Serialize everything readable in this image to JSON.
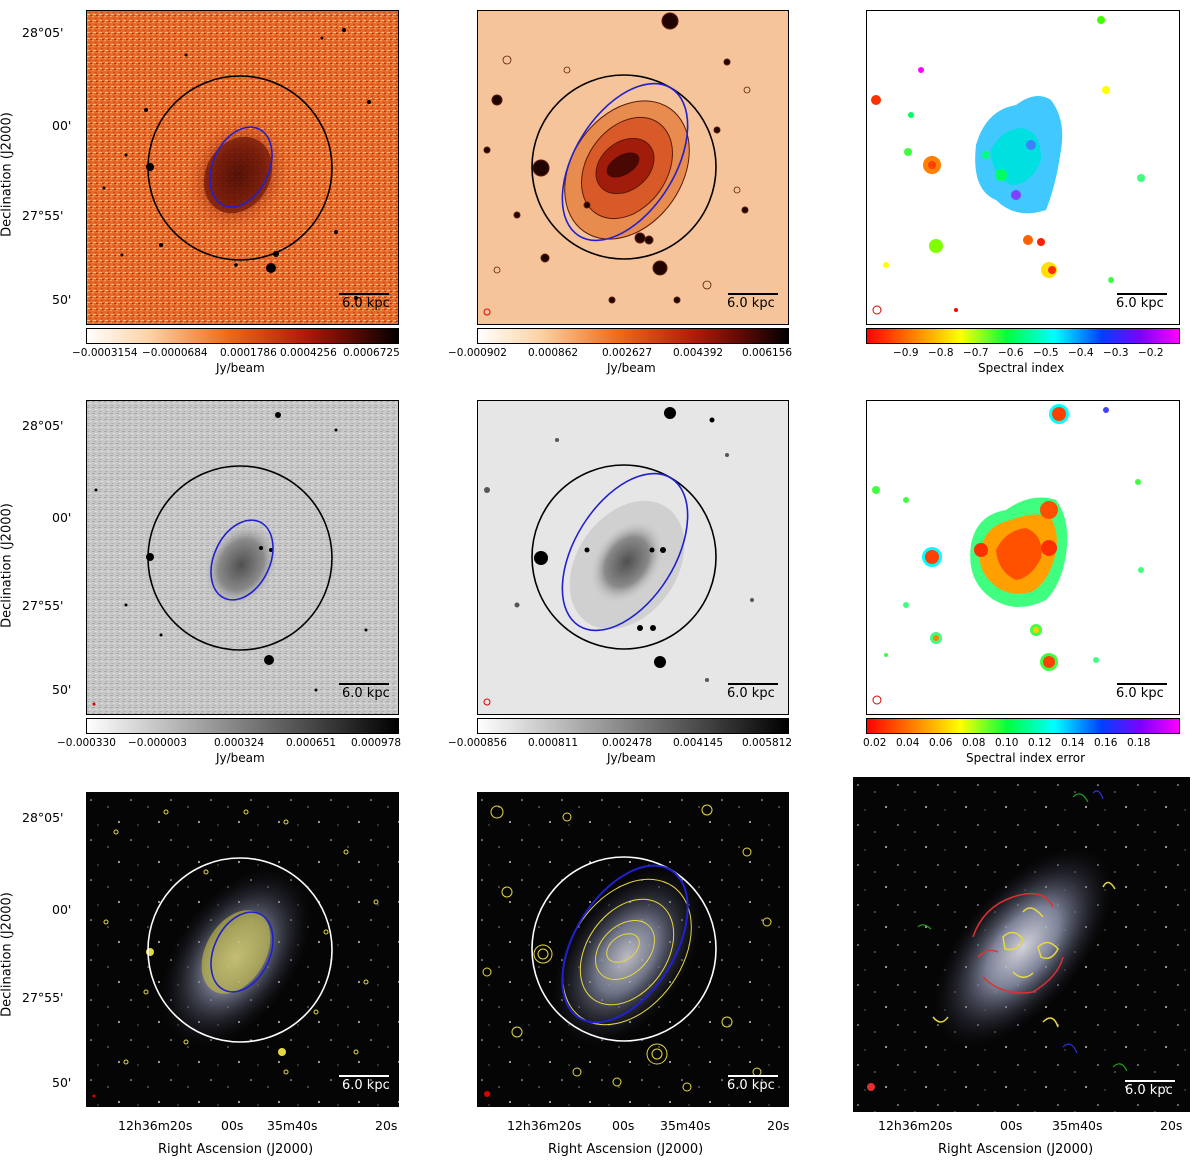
{
  "figure": {
    "y_axis_label": "Declination (J2000)",
    "x_axis_label": "Right Ascension (J2000)",
    "dec_ticks": [
      "28°05'",
      "00'",
      "27°55'",
      "50'"
    ],
    "ra_ticks": [
      "12h36m20s",
      "00s",
      "35m40s",
      "20s"
    ],
    "scale_bar": "6.0 kpc"
  },
  "panels": {
    "r1c1": {
      "colorbar": {
        "label": "Jy/beam",
        "ticks": [
          "−0.0003154",
          "−0.0000684",
          "0.0001786",
          "0.0004256",
          "0.0006725"
        ]
      }
    },
    "r1c2": {
      "colorbar": {
        "label": "Jy/beam",
        "ticks": [
          "−0.000902",
          "0.000862",
          "0.002627",
          "0.004392",
          "0.006156"
        ]
      }
    },
    "r1c3": {
      "colorbar": {
        "label": "Spectral index",
        "ticks": [
          "−0.9",
          "−0.8",
          "−0.7",
          "−0.6",
          "−0.5",
          "−0.4",
          "−0.3",
          "−0.2"
        ]
      }
    },
    "r2c1": {
      "colorbar": {
        "label": "Jy/beam",
        "ticks": [
          "−0.000330",
          "−0.000003",
          "0.000324",
          "0.000651",
          "0.000978"
        ]
      }
    },
    "r2c2": {
      "colorbar": {
        "label": "Jy/beam",
        "ticks": [
          "−0.000856",
          "0.000811",
          "0.002478",
          "0.004145",
          "0.005812"
        ]
      }
    },
    "r2c3": {
      "colorbar": {
        "label": "Spectral index error",
        "ticks": [
          "0.02",
          "0.04",
          "0.06",
          "0.08",
          "0.10",
          "0.12",
          "0.14",
          "0.16",
          "0.18"
        ]
      }
    }
  },
  "colors": {
    "orange_map": "#e8692a",
    "ellipse_blue": "#2020d0",
    "circle_black": "#000000",
    "circle_white": "#ffffff",
    "contour_yellow": "#e6d840"
  }
}
